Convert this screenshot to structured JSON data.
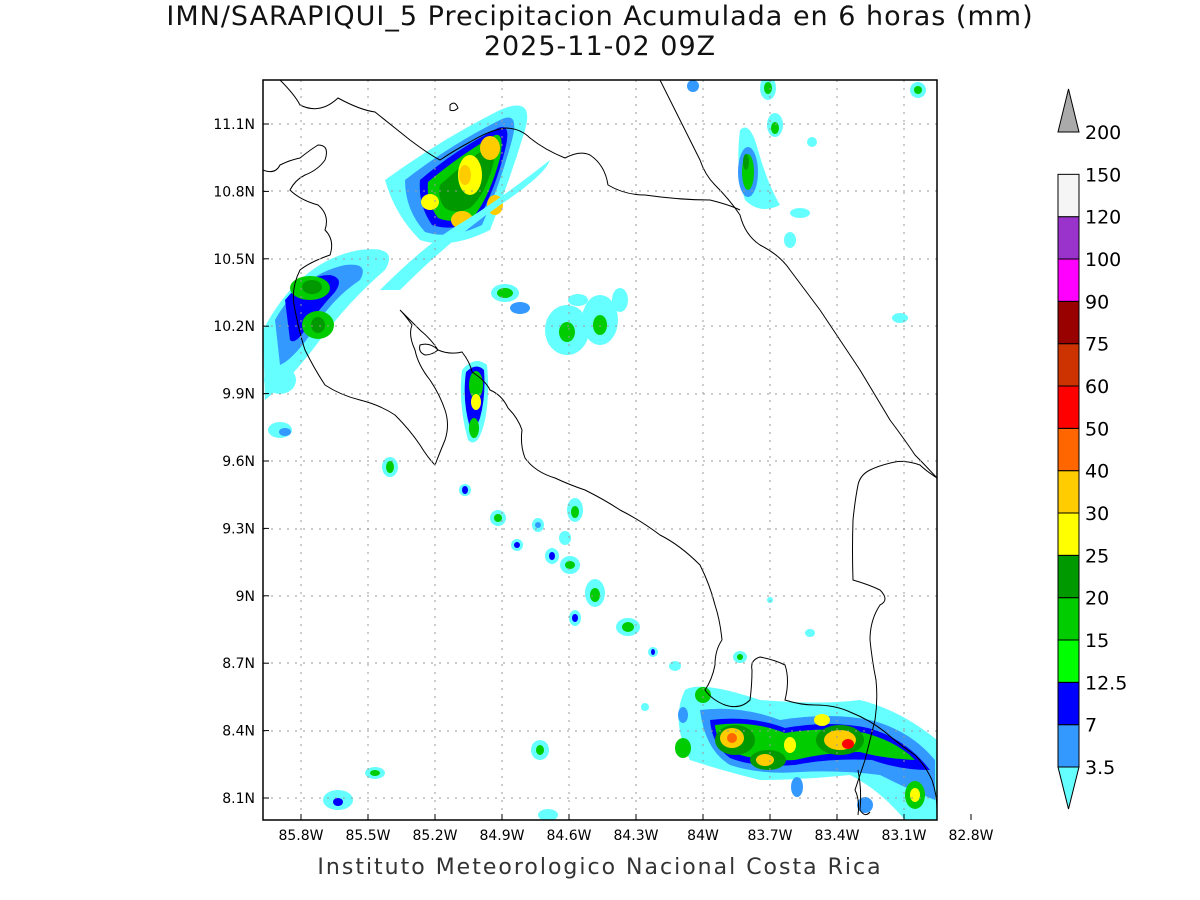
{
  "title": {
    "line1": "IMN/SARAPIQUI_5 Precipitacion Acumulada en 6 horas (mm)",
    "line2": "2025-11-02 09Z"
  },
  "credit": "Instituto Meteorologico Nacional Costa Rica",
  "map": {
    "lon_labels": [
      "85.8W",
      "85.5W",
      "85.2W",
      "84.9W",
      "84.6W",
      "84.3W",
      "84W",
      "83.7W",
      "83.4W",
      "83.1W",
      "82.8W"
    ],
    "lat_labels": [
      "11.1N",
      "10.8N",
      "10.5N",
      "10.2N",
      "9.9N",
      "9.6N",
      "9.3N",
      "9N",
      "8.7N",
      "8.4N",
      "8.1N"
    ]
  },
  "colorbar": {
    "labels": [
      "3.5",
      "7",
      "12.5",
      "15",
      "20",
      "25",
      "30",
      "40",
      "50",
      "60",
      "75",
      "90",
      "100",
      "120",
      "150",
      "200"
    ],
    "colors": [
      "#66ffff",
      "#3399ff",
      "#0000ff",
      "#00ff00",
      "#00cc00",
      "#009900",
      "#ffff00",
      "#ffcc00",
      "#ff6600",
      "#ff0000",
      "#cc3300",
      "#990000",
      "#ff00ff",
      "#9933cc",
      "#f5f5f5",
      "#aaaaaa"
    ]
  }
}
